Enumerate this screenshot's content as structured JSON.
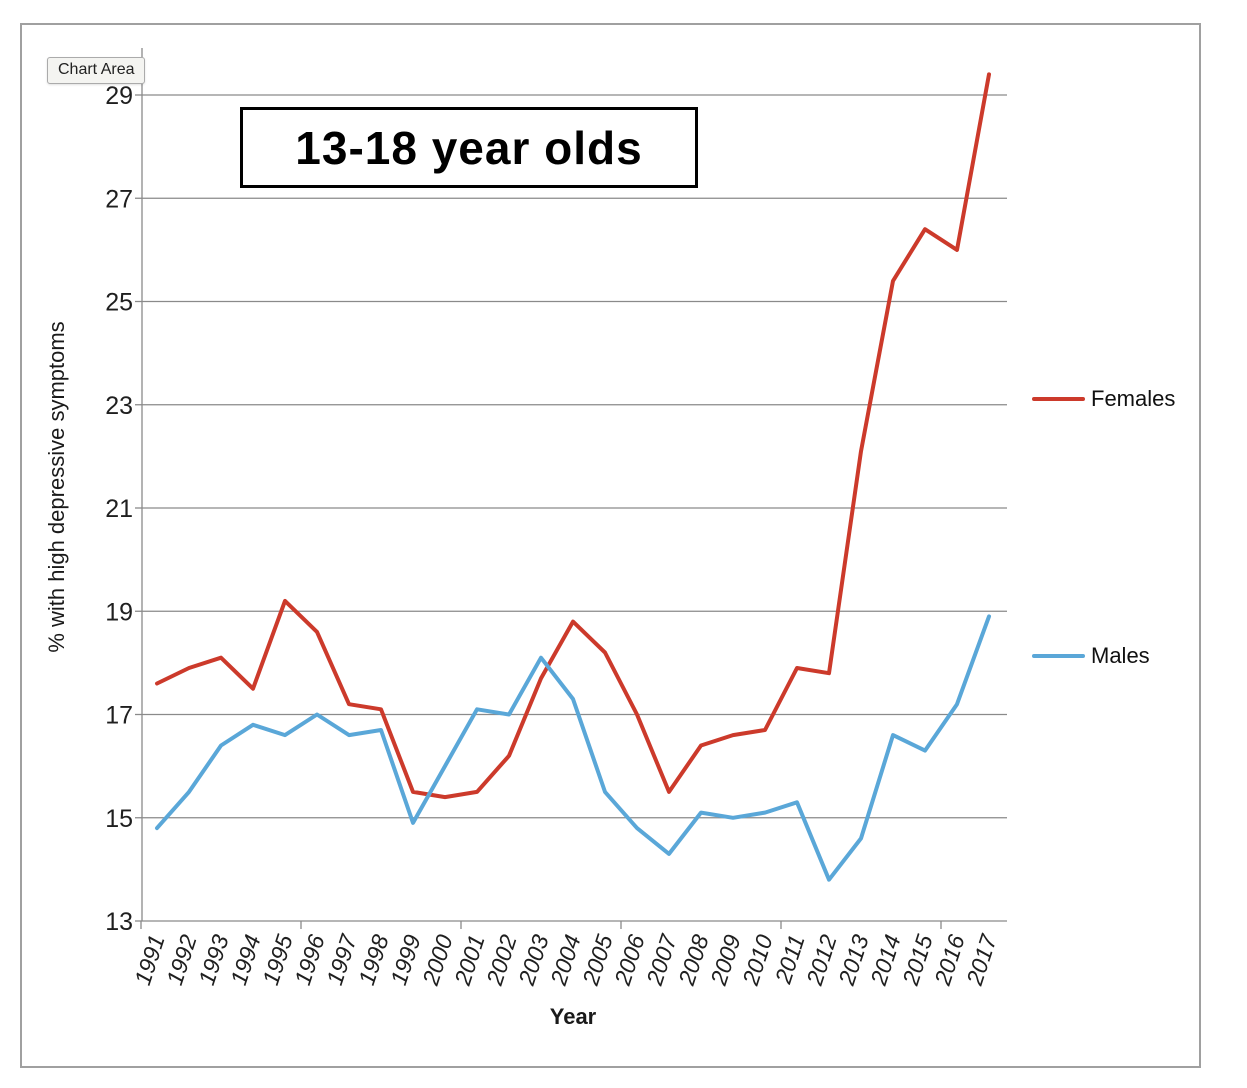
{
  "tooltip": {
    "label": "Chart Area"
  },
  "legend": {
    "females_label": "Females",
    "males_label": "Males"
  },
  "colors": {
    "females": "#cc3a2b",
    "males": "#5aa7d8",
    "gridline": "#8a8a8a",
    "axis": "#8a8a8a",
    "tick_text": "#1f1f1f",
    "border": "#a0a0a0"
  },
  "chart_data": {
    "type": "line",
    "title": "13-18 year olds",
    "xlabel": "Year",
    "ylabel": "% with high depressive symptoms",
    "ylim": [
      13,
      29
    ],
    "y_ticks": [
      13,
      15,
      17,
      19,
      21,
      23,
      25,
      27,
      29
    ],
    "grid": true,
    "legend_position": "right",
    "categories": [
      "1991",
      "1992",
      "1993",
      "1994",
      "1995",
      "1996",
      "1997",
      "1998",
      "1999",
      "2000",
      "2001",
      "2002",
      "2003",
      "2004",
      "2005",
      "2006",
      "2007",
      "2008",
      "2009",
      "2010",
      "2011",
      "2012",
      "2013",
      "2014",
      "2015",
      "2016",
      "2017"
    ],
    "series": [
      {
        "name": "Females",
        "color": "#cc3a2b",
        "values": [
          17.6,
          17.9,
          18.1,
          17.5,
          19.2,
          18.6,
          17.2,
          17.1,
          15.5,
          15.4,
          15.5,
          16.2,
          17.7,
          18.8,
          18.2,
          17.0,
          15.5,
          16.4,
          16.6,
          16.7,
          17.9,
          17.8,
          22.1,
          25.4,
          26.4,
          26.0,
          29.4
        ]
      },
      {
        "name": "Males",
        "color": "#5aa7d8",
        "values": [
          14.8,
          15.5,
          16.4,
          16.8,
          16.6,
          17.0,
          16.6,
          16.7,
          14.9,
          16.0,
          17.1,
          17.0,
          18.1,
          17.3,
          15.5,
          14.8,
          14.3,
          15.1,
          15.0,
          15.1,
          15.3,
          13.8,
          14.6,
          16.6,
          16.3,
          17.2,
          18.9
        ]
      }
    ]
  }
}
